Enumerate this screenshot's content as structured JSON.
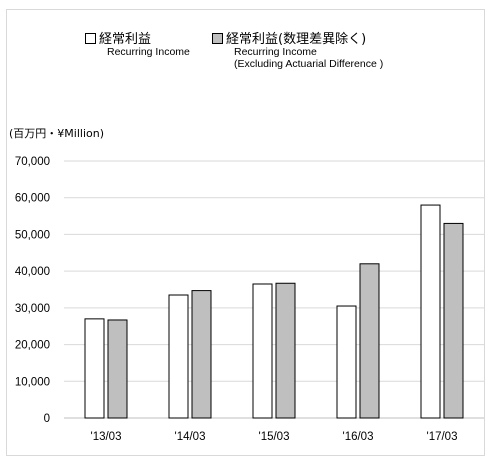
{
  "legend": {
    "item1": {
      "label_jp": "経常利益",
      "label_en": "Recurring Income",
      "color": "#ffffff"
    },
    "item2": {
      "label_jp": "経常利益(数理差異除く)",
      "label_en_line1": "Recurring Income",
      "label_en_line2": "(Excluding Actuarial Difference )",
      "color": "#bfbfbf"
    }
  },
  "unit_label": "(百万円・¥Million)",
  "chart_data": {
    "type": "bar",
    "categories": [
      "'13/03",
      "'14/03",
      "'15/03",
      "'16/03",
      "'17/03"
    ],
    "series": [
      {
        "name": "経常利益 Recurring Income",
        "color": "#ffffff",
        "values": [
          27000,
          33500,
          36500,
          30500,
          58000
        ]
      },
      {
        "name": "経常利益(数理差異除く) Recurring Income (Excluding Actuarial Difference )",
        "color": "#bfbfbf",
        "values": [
          26700,
          34700,
          36700,
          42000,
          53000
        ]
      }
    ],
    "ylim": [
      0,
      70000
    ],
    "yticks": [
      "0",
      "10,000",
      "20,000",
      "30,000",
      "40,000",
      "50,000",
      "60,000",
      "70,000"
    ],
    "ytick_values": [
      0,
      10000,
      20000,
      30000,
      40000,
      50000,
      60000,
      70000
    ],
    "grid": true,
    "legend_position": "top"
  }
}
